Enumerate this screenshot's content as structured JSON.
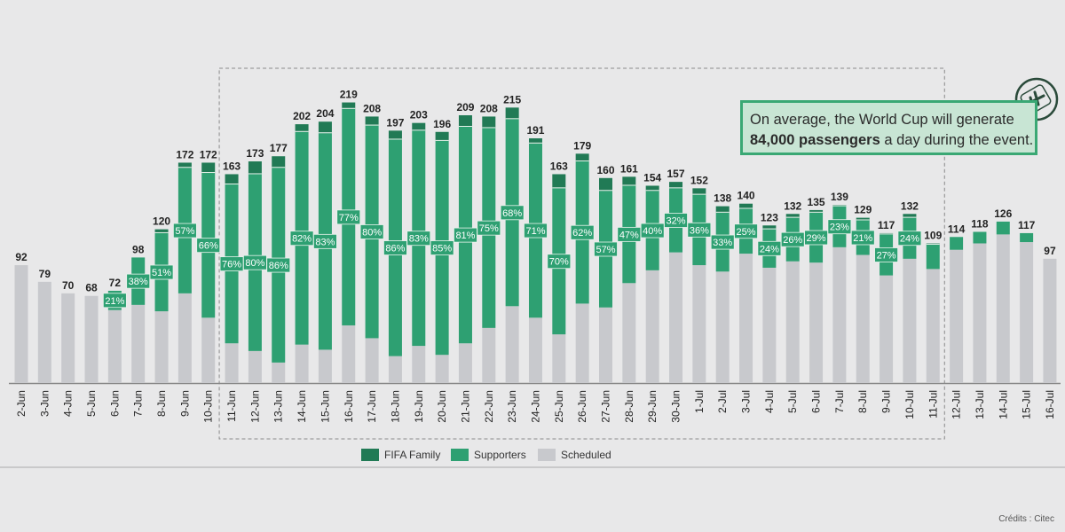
{
  "chart_data": {
    "type": "bar",
    "stacked": true,
    "categories": [
      "2-Jun",
      "3-Jun",
      "4-Jun",
      "5-Jun",
      "6-Jun",
      "7-Jun",
      "8-Jun",
      "9-Jun",
      "10-Jun",
      "11-Jun",
      "12-Jun",
      "13-Jun",
      "14-Jun",
      "15-Jun",
      "16-Jun",
      "17-Jun",
      "18-Jun",
      "19-Jun",
      "20-Jun",
      "21-Jun",
      "22-Jun",
      "23-Jun",
      "24-Jun",
      "25-Jun",
      "26-Jun",
      "27-Jun",
      "28-Jun",
      "29-Jun",
      "30-Jun",
      "1-Jul",
      "2-Jul",
      "3-Jul",
      "4-Jul",
      "5-Jul",
      "6-Jul",
      "7-Jul",
      "8-Jul",
      "9-Jul",
      "10-Jul",
      "11-Jul",
      "12-Jul",
      "13-Jul",
      "14-Jul",
      "15-Jul",
      "16-Jul"
    ],
    "totals": [
      92,
      79,
      70,
      68,
      72,
      98,
      120,
      172,
      172,
      163,
      173,
      177,
      202,
      204,
      219,
      208,
      197,
      203,
      196,
      209,
      208,
      215,
      191,
      163,
      179,
      160,
      161,
      154,
      157,
      152,
      138,
      140,
      123,
      132,
      135,
      139,
      129,
      117,
      132,
      109,
      114,
      118,
      126,
      117,
      97
    ],
    "supporters_share_labels": [
      "",
      "",
      "",
      "",
      "21%",
      "38%",
      "51%",
      "57%",
      "66%",
      "76%",
      "80%",
      "86%",
      "82%",
      "83%",
      "77%",
      "80%",
      "86%",
      "83%",
      "85%",
      "81%",
      "75%",
      "68%",
      "71%",
      "70%",
      "62%",
      "57%",
      "47%",
      "40%",
      "32%",
      "36%",
      "33%",
      "25%",
      "24%",
      "26%",
      "29%",
      "23%",
      "21%",
      "27%",
      "24%",
      "",
      "",
      "",
      "",
      "",
      ""
    ],
    "series": [
      {
        "name": "Scheduled",
        "color": "#c8c9cd",
        "values": [
          92,
          79,
          70,
          68,
          57,
          61,
          56,
          70,
          51,
          31,
          25,
          16,
          30,
          26,
          45,
          35,
          21,
          29,
          22,
          31,
          43,
          60,
          51,
          38,
          62,
          59,
          78,
          88,
          102,
          92,
          87,
          101,
          90,
          95,
          94,
          106,
          100,
          84,
          97,
          89,
          104,
          109,
          116,
          110,
          97
        ]
      },
      {
        "name": "Supporters",
        "color": "#2ea072",
        "values": [
          0,
          0,
          0,
          0,
          15,
          37,
          61,
          98,
          113,
          124,
          138,
          152,
          166,
          169,
          169,
          166,
          169,
          168,
          167,
          169,
          156,
          146,
          136,
          114,
          111,
          91,
          76,
          62,
          50,
          55,
          46,
          35,
          30,
          34,
          39,
          32,
          27,
          32,
          32,
          19,
          10,
          9,
          10,
          7,
          0
        ]
      },
      {
        "name": "FIFA Family",
        "color": "#217a55",
        "values": [
          0,
          0,
          0,
          0,
          0,
          0,
          3,
          4,
          8,
          8,
          10,
          9,
          6,
          9,
          5,
          7,
          7,
          6,
          7,
          9,
          9,
          9,
          4,
          11,
          6,
          10,
          7,
          4,
          5,
          5,
          5,
          4,
          3,
          3,
          2,
          1,
          2,
          1,
          3,
          1,
          0,
          0,
          0,
          0,
          0
        ]
      }
    ],
    "legend": [
      "FIFA Family",
      "Supporters",
      "Scheduled"
    ],
    "legend_position": "bottom",
    "highlight_range": [
      "11-Jun",
      "11-Jul"
    ],
    "ylim": [
      0,
      230
    ],
    "grid": false,
    "annotation": {
      "line1": "On average, the World Cup will generate",
      "bold": "84,000 passengers",
      "rest": " a day during the event.",
      "icon": "airplane-luggage-icon"
    }
  },
  "credit": "Crédits : Citec"
}
